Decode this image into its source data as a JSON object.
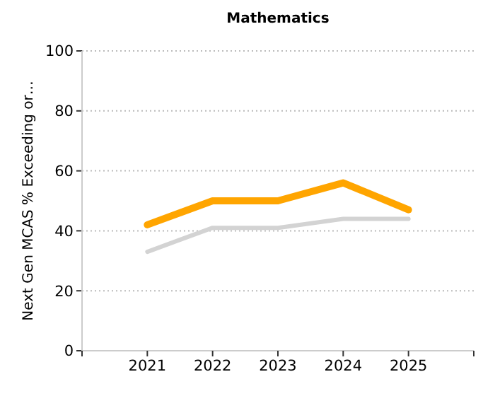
{
  "chart_data": {
    "type": "line",
    "title": "Mathematics",
    "ylabel": "Next Gen MCAS % Exceeding or…",
    "categories": [
      "2021",
      "2022",
      "2023",
      "2024",
      "2025"
    ],
    "series": [
      {
        "color": "#d3d3d3",
        "values": [
          33,
          41,
          41,
          44,
          44
        ]
      },
      {
        "color": "#ffa500",
        "values": [
          42,
          50,
          50,
          56,
          47
        ]
      }
    ],
    "ylim": [
      0,
      100
    ],
    "yticks": [
      0,
      20,
      40,
      60,
      80,
      100
    ],
    "grid": "y"
  }
}
